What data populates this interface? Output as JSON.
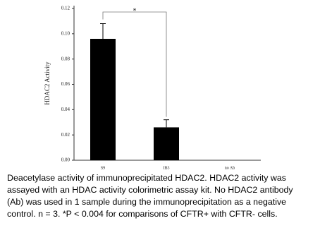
{
  "chart_data": {
    "type": "bar",
    "ylabel": "HDAC2 Activity",
    "categories": [
      "S9",
      "IB3",
      "no Ab"
    ],
    "values": [
      0.096,
      0.026,
      0
    ],
    "errors": [
      0.012,
      0.006,
      0
    ],
    "color": "#000000",
    "ylim": [
      0,
      0.12
    ],
    "yticks": [
      {
        "value": 0,
        "label": "0.00"
      },
      0.02,
      0.04,
      0.06,
      0.08,
      {
        "value": 0.1,
        "label": "0.10"
      },
      0.12
    ],
    "annotation": "*",
    "grid": false
  },
  "caption": [
    "Deacetylase activity of immunoprecipitated HDAC2. HDAC2 activity was",
    "assayed with an HDAC activity colorimetric assay kit. No HDAC2 antibody",
    "(Ab) was used in 1 sample during the immunoprecipitation as a negative",
    "control. n = 3. *P < 0.004 for comparisons of CFTR+ with CFTR- cells."
  ]
}
